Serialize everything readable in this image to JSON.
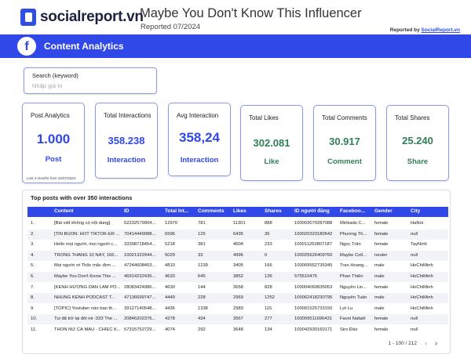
{
  "brand": {
    "logo_text": "socialreport.vn",
    "accent": "#3148e8"
  },
  "report": {
    "title": "Maybe You Don't Know This Influencer",
    "date": "Reported 07/2024",
    "reported_by_prefix": "Reported by ",
    "reported_by_link": "SocialReport.vn"
  },
  "section": {
    "icon": "facebook-icon",
    "title": "Content Analytics"
  },
  "search": {
    "label": "Search (keyword)",
    "placeholder": "Nhập giá trị"
  },
  "cards": [
    {
      "title": "Post Analytics",
      "value": "1.000",
      "sub": "Post",
      "note": "Last 3 months from 20/07/2024"
    },
    {
      "title": "Total Interactions",
      "value": "358.238",
      "sub": "Interaction"
    },
    {
      "title": "Avg Interaction",
      "value": "358,24",
      "sub": "Interaction"
    },
    {
      "title": "Total Likes",
      "value": "302.081",
      "sub": "Like"
    },
    {
      "title": "Total Comments",
      "value": "30.917",
      "sub": "Comment"
    },
    {
      "title": "Total Shares",
      "value": "25.240",
      "sub": "Share"
    }
  ],
  "table": {
    "title": "Top posts with over 350 interactions",
    "columns": [
      "Content",
      "ID",
      "Total Int...",
      "Comments",
      "Likes",
      "Shares",
      "ID người đăng",
      "Faceboo...",
      "Gender",
      "City"
    ],
    "rows": [
      [
        "1.",
        "[Bài viết không có nội dung]",
        "52232579904...",
        "12970",
        "781",
        "11301",
        "888",
        "100003079287088",
        "Mirikado C...",
        "female",
        "HaNoi"
      ],
      [
        "2.",
        "[TIN BUỒN: HOT TIKTOK-ER ...",
        "70414449088...",
        "6596",
        "125",
        "6435",
        "36",
        "100020323180542",
        "Phương Th...",
        "female",
        "null"
      ],
      [
        "3.",
        "Hello mọi người, mọi người c...",
        "33398718454...",
        "5218",
        "381",
        "4604",
        "233",
        "100011263807187",
        "Ngọc Trân",
        "female",
        "TayNinh"
      ],
      [
        "4.",
        "TRONG THÁNG 10 NÀY, 166...",
        "10021322944...",
        "5029",
        "33",
        "4996",
        "0",
        "100025626409760",
        "Maybe Coll...",
        "neuter",
        "null"
      ],
      [
        "5.",
        "Mọi người ơi Thắc mắc đơn ...",
        "47244608403...",
        "4810",
        "1239",
        "3405",
        "166",
        "100009552735345",
        "Tran Hoang...",
        "male",
        "HoChiMinh"
      ],
      [
        "6.",
        "Maybe You Don't Know This ...",
        "46914232436...",
        "4633",
        "645",
        "3852",
        "136",
        "575510475",
        "Phan Thiên",
        "male",
        "HoChiMinh"
      ],
      [
        "7.",
        "[KÊNH HƯỚNG DẪN LÀM PO...",
        "28083424986...",
        "4630",
        "144",
        "3658",
        "828",
        "100004060835053",
        "Nguyễn Lin...",
        "female",
        "HoChiMinh"
      ],
      [
        "8.",
        "NHUNG KENH PODCAST T...",
        "47136699747...",
        "4449",
        "228",
        "2969",
        "1252",
        "100062418230795",
        "Nguyễn Tuấn",
        "male",
        "HoChiMinh"
      ],
      [
        "9.",
        "[TOPIC] Youtuber nào bạn th...",
        "39127140548...",
        "4436",
        "1338",
        "2983",
        "115",
        "100001525733150",
        "Lợi Lu",
        "male",
        "HoChiMinh"
      ],
      [
        "10.",
        "Tui đã trở lại đôi nè :333 The ...",
        "20846202376...",
        "4278",
        "434",
        "3567",
        "277",
        "100009511696431",
        "Favst Nafaël",
        "female",
        "null"
      ],
      [
        "11.",
        "THÔN NỮ CÀ MAU - CHIẾC K...",
        "57315752729...",
        "4074",
        "292",
        "3648",
        "134",
        "100042930160171",
        "Siro Đào",
        "female",
        "null"
      ]
    ],
    "pager": "1 - 100 / 212",
    "prev_icon": "chevron-left-icon",
    "next_icon": "chevron-right-icon"
  }
}
